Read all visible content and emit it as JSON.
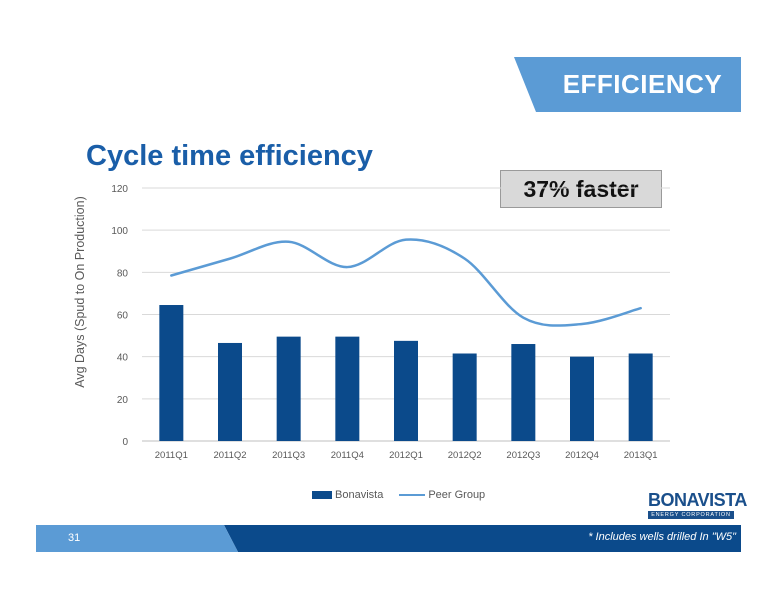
{
  "slide": {
    "section": "EFFICIENCY",
    "title": "Cycle time efficiency",
    "callout": "37% faster",
    "page_number": "31",
    "footnote": "* Includes wells drilled In \"W5\"",
    "logo_name": "BONAVISTA",
    "logo_sub": "ENERGY CORPORATION"
  },
  "colors": {
    "bar": "#0b4a8b",
    "line": "#5b9bd5",
    "banner": "#5b9bd5",
    "footer_dark": "#0b4a8b",
    "footer_light": "#5b9bd5"
  },
  "chart_data": {
    "type": "bar",
    "title": "",
    "xlabel": "",
    "ylabel": "Avg Days (Spud to On Production)",
    "ylim": [
      0,
      120
    ],
    "yticks": [
      0,
      20,
      40,
      60,
      80,
      100,
      120
    ],
    "categories": [
      "2011Q1",
      "2011Q2",
      "2011Q3",
      "2011Q4",
      "2012Q1",
      "2012Q2",
      "2012Q3",
      "2012Q4",
      "2013Q1"
    ],
    "grid": true,
    "legend_position": "bottom",
    "series": [
      {
        "name": "Bonavista",
        "type": "bar",
        "values": [
          64.5,
          46.5,
          49.5,
          49.5,
          47.5,
          41.5,
          46,
          40,
          41.5
        ]
      },
      {
        "name": "Peer Group",
        "type": "line",
        "values": [
          78.5,
          86.5,
          94.5,
          82.5,
          95.5,
          86.5,
          58.5,
          55.5,
          63
        ]
      }
    ]
  }
}
